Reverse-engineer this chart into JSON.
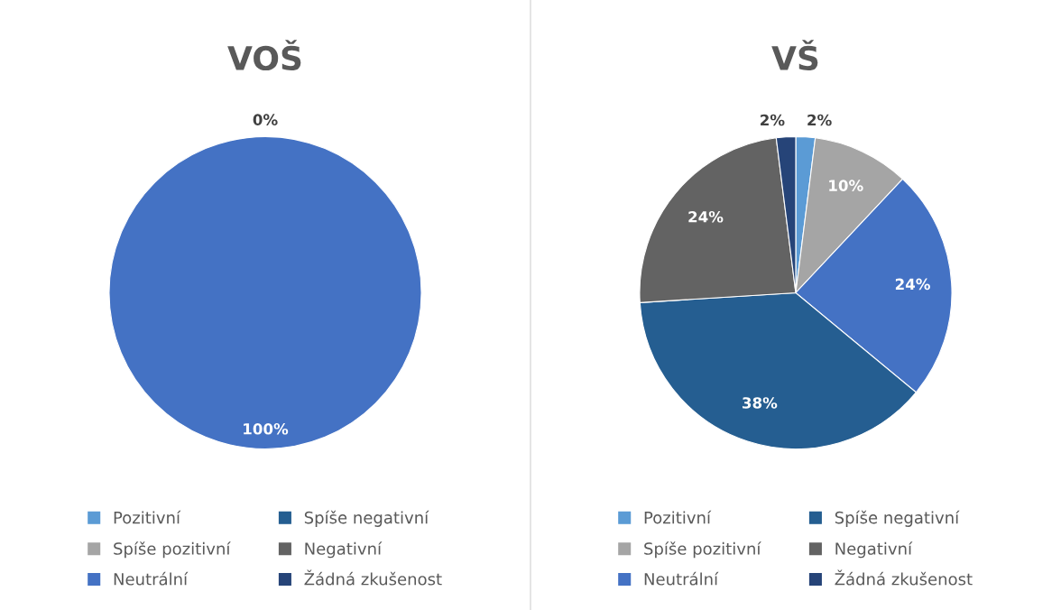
{
  "chart_data": [
    {
      "type": "pie",
      "title": "VOŠ",
      "categories": [
        "Pozitivní",
        "Spíše pozitivní",
        "Neutrální",
        "Spíše negativní",
        "Negativní",
        "Žádná zkušenost"
      ],
      "values": [
        0,
        0,
        100,
        0,
        0,
        0
      ],
      "colors": [
        "#5b9bd5",
        "#a5a5a5",
        "#4472c4",
        "#255e91",
        "#636363",
        "#264478"
      ],
      "value_labels": [
        "0%",
        null,
        "100%",
        null,
        null,
        null
      ],
      "legend": "bottom"
    },
    {
      "type": "pie",
      "title": "VŠ",
      "categories": [
        "Pozitivní",
        "Spíše pozitivní",
        "Neutrální",
        "Spíše negativní",
        "Negativní",
        "Žádná zkušenost"
      ],
      "values": [
        2,
        10,
        24,
        38,
        24,
        2
      ],
      "colors": [
        "#5b9bd5",
        "#a5a5a5",
        "#4472c4",
        "#255e91",
        "#636363",
        "#264478"
      ],
      "value_labels": [
        "2%",
        "10%",
        "24%",
        "38%",
        "24%",
        "2%"
      ],
      "legend": "bottom"
    }
  ]
}
